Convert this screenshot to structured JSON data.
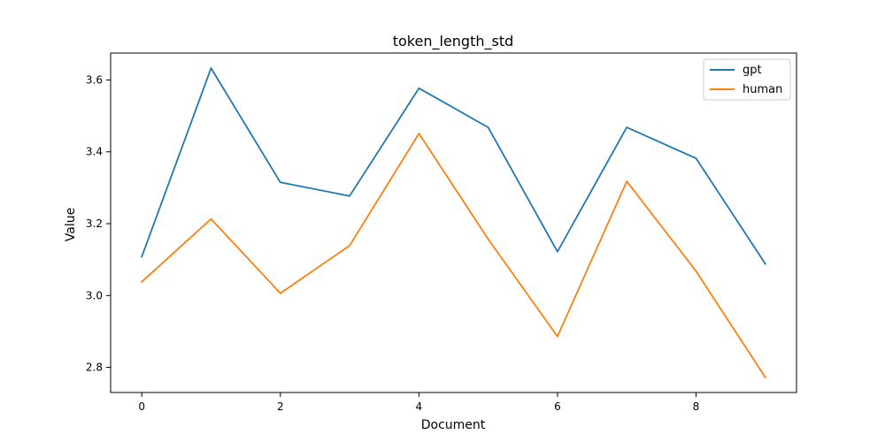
{
  "chart_data": {
    "type": "line",
    "title": "token_length_std",
    "xlabel": "Document",
    "ylabel": "Value",
    "x": [
      0,
      1,
      2,
      3,
      4,
      5,
      6,
      7,
      8,
      9
    ],
    "xlim": [
      -0.45,
      9.45
    ],
    "ylim": [
      2.73,
      3.675
    ],
    "xticks": [
      0,
      2,
      4,
      6,
      8
    ],
    "yticks": [
      2.8,
      3.0,
      3.2,
      3.4,
      3.6
    ],
    "xtick_labels": [
      "0",
      "2",
      "4",
      "6",
      "8"
    ],
    "ytick_labels": [
      "2.8",
      "3.0",
      "3.2",
      "3.4",
      "3.6"
    ],
    "grid": false,
    "legend_position": "top-right",
    "series": [
      {
        "name": "gpt",
        "color": "#1f77b4",
        "values": [
          3.108,
          3.633,
          3.315,
          3.277,
          3.577,
          3.468,
          3.122,
          3.468,
          3.382,
          3.088
        ]
      },
      {
        "name": "human",
        "color": "#ff7f0e",
        "values": [
          3.038,
          3.213,
          3.006,
          3.139,
          3.451,
          3.157,
          2.886,
          3.318,
          3.068,
          2.772
        ]
      }
    ]
  }
}
